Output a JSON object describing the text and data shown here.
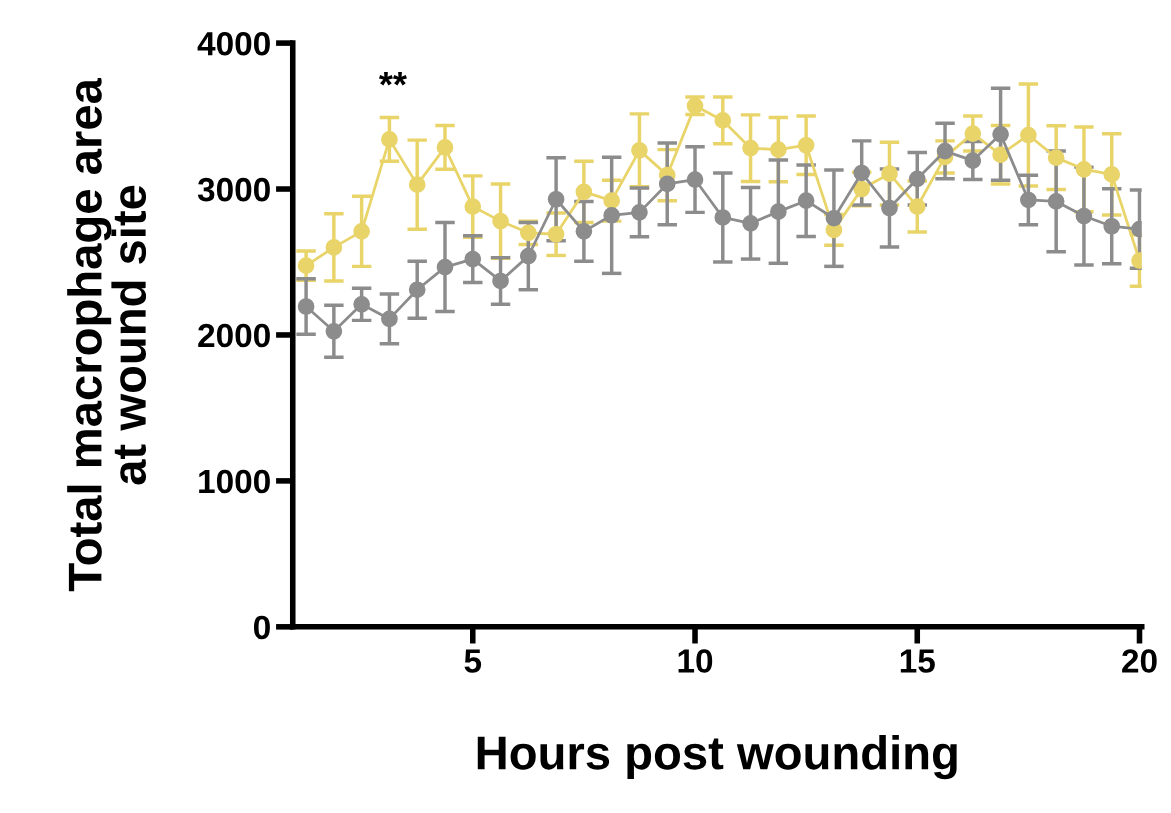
{
  "chart_data": {
    "type": "line",
    "xlabel": "Hours post wounding",
    "ylabel": "Total macrophage area\nat wound site",
    "x": [
      1.25,
      1.875,
      2.5,
      3.125,
      3.75,
      4.375,
      5,
      5.625,
      6.25,
      6.875,
      7.5,
      8.125,
      8.75,
      9.375,
      10,
      10.625,
      11.25,
      11.875,
      12.5,
      13.125,
      13.75,
      14.375,
      15,
      15.625,
      16.25,
      16.875,
      17.5,
      18.125,
      18.75,
      19.375,
      20
    ],
    "xlim": [
      0.95,
      20.05
    ],
    "xticks": [
      5,
      10,
      15,
      20
    ],
    "ylim": [
      0,
      4000
    ],
    "yticks": [
      0,
      1000,
      2000,
      3000,
      4000
    ],
    "marker": "circle",
    "line_style": "solid",
    "grid": false,
    "legend": false,
    "series": [
      {
        "color": "#e9d46a",
        "values": [
          2475,
          2600,
          2710,
          3340,
          3030,
          3285,
          2880,
          2780,
          2700,
          2690,
          2980,
          2920,
          3265,
          3095,
          3570,
          3470,
          3280,
          3270,
          3300,
          2720,
          3000,
          3105,
          2880,
          3220,
          3380,
          3235,
          3370,
          3215,
          3135,
          3100,
          2510
        ],
        "errors": [
          100,
          230,
          240,
          150,
          305,
          150,
          210,
          255,
          80,
          145,
          210,
          140,
          250,
          175,
          60,
          160,
          228,
          220,
          200,
          105,
          115,
          215,
          175,
          110,
          120,
          200,
          350,
          218,
          290,
          278,
          176
        ]
      },
      {
        "color": "#8c8c8c",
        "values": [
          2195,
          2025,
          2210,
          2110,
          2310,
          2465,
          2520,
          2370,
          2540,
          2930,
          2710,
          2820,
          2840,
          3035,
          3065,
          2805,
          2765,
          2845,
          2920,
          2800,
          3110,
          2870,
          3070,
          3260,
          3195,
          3375,
          2925,
          2915,
          2815,
          2745,
          2725
        ],
        "errors": [
          190,
          178,
          110,
          170,
          195,
          305,
          160,
          160,
          230,
          285,
          205,
          398,
          167,
          280,
          225,
          305,
          245,
          354,
          245,
          330,
          220,
          267,
          180,
          190,
          130,
          315,
          170,
          345,
          335,
          257,
          268
        ]
      }
    ],
    "annotations": [
      "**"
    ]
  }
}
